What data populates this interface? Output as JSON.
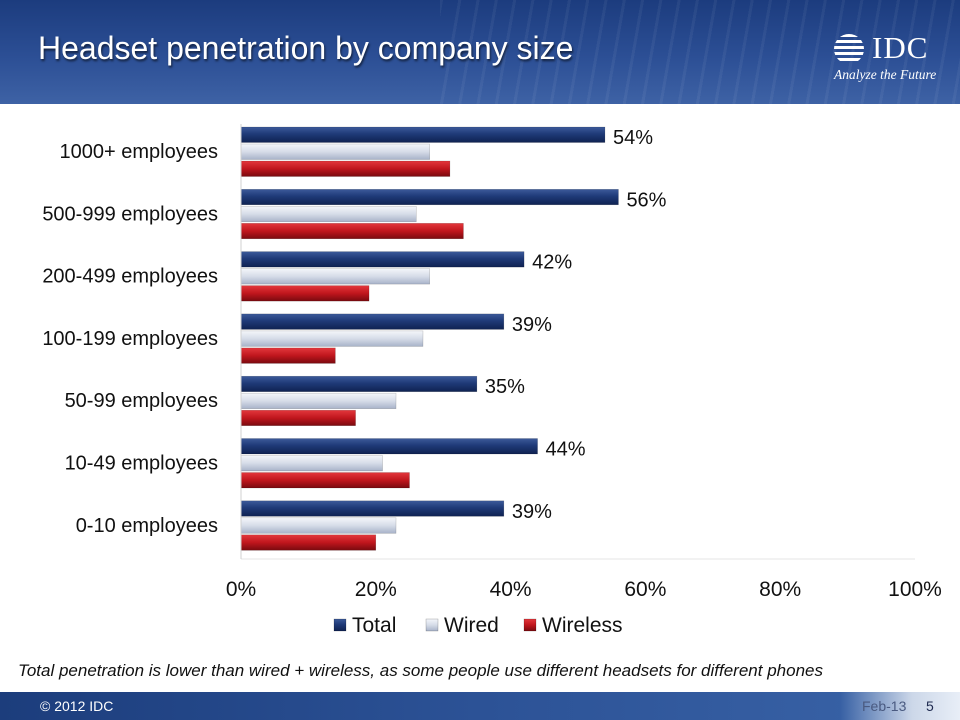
{
  "title": "Headset penetration by company size",
  "logo": {
    "name": "IDC",
    "tagline": "Analyze the Future"
  },
  "footnote": "Total penetration is lower than wired + wireless, as some people use different headsets for different phones",
  "footer": {
    "copyright": "© 2012 IDC",
    "date": "Feb-13",
    "page": "5"
  },
  "colors": {
    "total": "#1f3a78",
    "wired": "#d6dce8",
    "wireless": "#c0161d",
    "header": "#2c4f95"
  },
  "chart_data": {
    "type": "bar",
    "orientation": "horizontal",
    "categories": [
      "1000+ employees",
      "500-999 employees",
      "200-499 employees",
      "100-199 employees",
      "50-99 employees",
      "10-49 employees",
      "0-10 employees"
    ],
    "series": [
      {
        "name": "Total",
        "values": [
          54,
          56,
          42,
          39,
          35,
          44,
          39
        ]
      },
      {
        "name": "Wired",
        "values": [
          28,
          26,
          28,
          27,
          23,
          21,
          23
        ]
      },
      {
        "name": "Wireless",
        "values": [
          31,
          33,
          19,
          14,
          17,
          25,
          20
        ]
      }
    ],
    "data_labels": [
      "54%",
      "56%",
      "42%",
      "39%",
      "35%",
      "44%",
      "39%"
    ],
    "x_ticks": [
      "0%",
      "20%",
      "40%",
      "60%",
      "80%",
      "100%"
    ],
    "xlim": [
      0,
      100
    ],
    "legend_position": "bottom"
  }
}
